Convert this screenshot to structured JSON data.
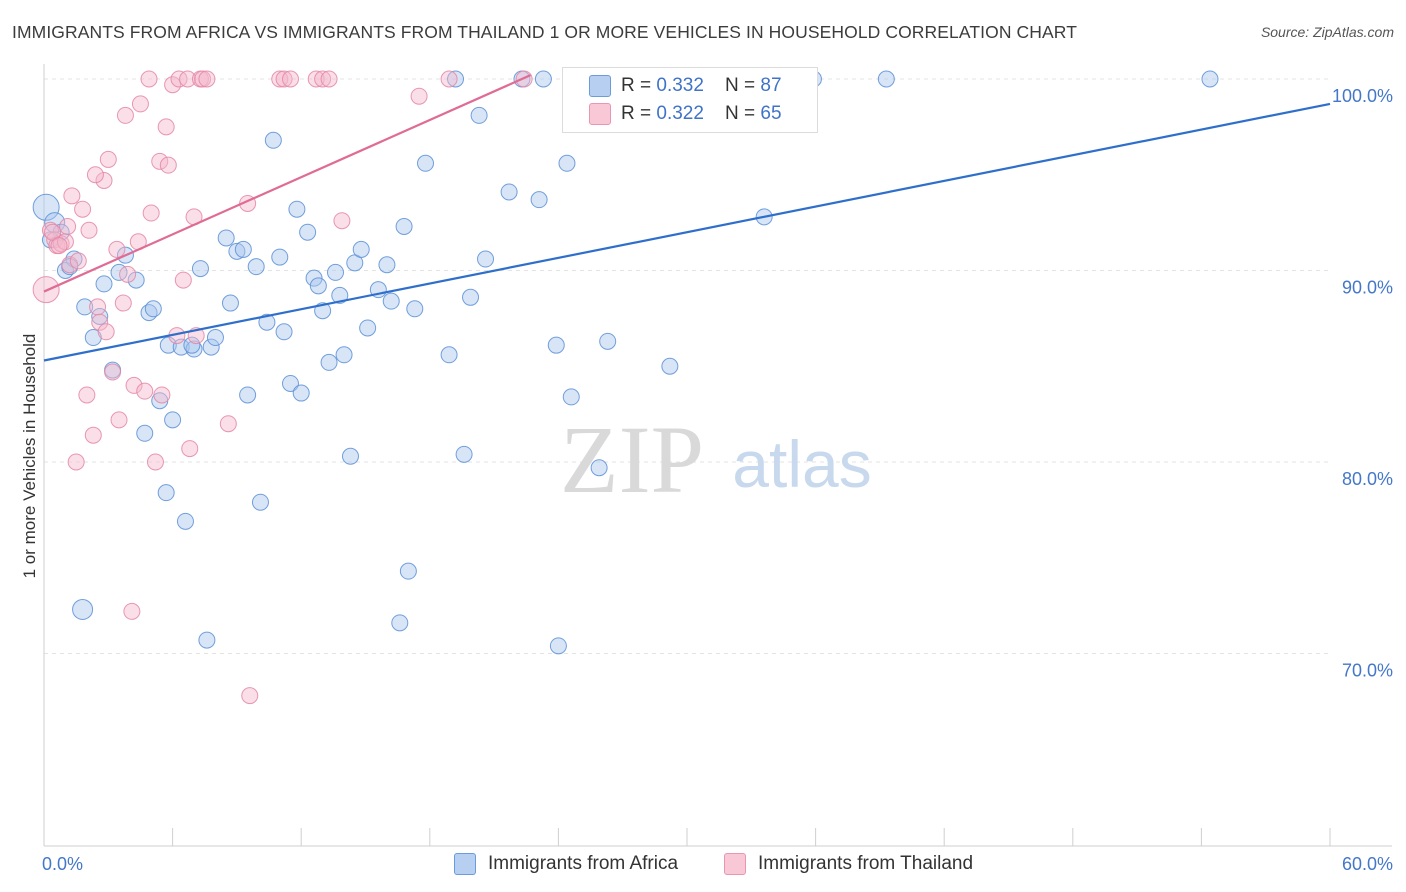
{
  "title": "IMMIGRANTS FROM AFRICA VS IMMIGRANTS FROM THAILAND 1 OR MORE VEHICLES IN HOUSEHOLD CORRELATION CHART",
  "source": "Source: ZipAtlas.com",
  "legend_top": {
    "africa": {
      "r_label": "R = ",
      "r_value": "0.332",
      "n_label": "N = ",
      "n_value": "87"
    },
    "thailand": {
      "r_label": "R = ",
      "r_value": "0.322",
      "n_label": "N = ",
      "n_value": "65"
    }
  },
  "watermark": {
    "zip": "ZIP",
    "atlas": "atlas"
  },
  "colors": {
    "africa_fill": "#a9c6ee",
    "africa_stroke": "#5b8fd6",
    "africa_line": "#2f6fcc",
    "thailand_fill": "#f4b8cb",
    "thailand_stroke": "#e486a5",
    "thailand_line": "#e06b94",
    "axis_label": "#4477c9",
    "grid": "#e3e3e3"
  },
  "chart_data": {
    "type": "scatter",
    "title": "IMMIGRANTS FROM AFRICA VS IMMIGRANTS FROM THAILAND 1 OR MORE VEHICLES IN HOUSEHOLD CORRELATION CHART",
    "xlabel": "",
    "ylabel": "1 or more Vehicles in Household",
    "xlim": [
      0,
      60
    ],
    "ylim": [
      60,
      102
    ],
    "x_tick_labels": [
      {
        "value": 0,
        "label": "0.0%"
      },
      {
        "value": 60,
        "label": "60.0%"
      }
    ],
    "y_tick_labels": [
      {
        "value": 100,
        "label": "100.0%"
      },
      {
        "value": 90,
        "label": "90.0%"
      },
      {
        "value": 80,
        "label": "80.0%"
      },
      {
        "value": 70,
        "label": "70.0%"
      }
    ],
    "series": [
      {
        "name": "Immigrants from Africa",
        "color": "#a9c6ee",
        "trendline": {
          "x": [
            0,
            60
          ],
          "y": [
            85.3,
            98.7
          ]
        },
        "points": [
          {
            "x": 0.1,
            "y": 93.3,
            "r": 13
          },
          {
            "x": 0.5,
            "y": 92.5,
            "r": 10
          },
          {
            "x": 0.8,
            "y": 92.0
          },
          {
            "x": 1.0,
            "y": 90.0
          },
          {
            "x": 1.4,
            "y": 90.6
          },
          {
            "x": 1.9,
            "y": 88.1
          },
          {
            "x": 2.3,
            "y": 86.5
          },
          {
            "x": 2.6,
            "y": 87.6
          },
          {
            "x": 2.8,
            "y": 89.3
          },
          {
            "x": 3.2,
            "y": 84.8
          },
          {
            "x": 3.5,
            "y": 89.9
          },
          {
            "x": 3.8,
            "y": 90.8
          },
          {
            "x": 4.3,
            "y": 89.5
          },
          {
            "x": 4.7,
            "y": 81.5
          },
          {
            "x": 4.9,
            "y": 87.8
          },
          {
            "x": 5.1,
            "y": 88.0
          },
          {
            "x": 5.4,
            "y": 83.2
          },
          {
            "x": 5.7,
            "y": 78.4
          },
          {
            "x": 5.8,
            "y": 86.1
          },
          {
            "x": 6.0,
            "y": 82.2
          },
          {
            "x": 6.4,
            "y": 86.0
          },
          {
            "x": 6.6,
            "y": 76.9
          },
          {
            "x": 7.0,
            "y": 85.9
          },
          {
            "x": 7.3,
            "y": 90.1
          },
          {
            "x": 7.6,
            "y": 70.7
          },
          {
            "x": 7.8,
            "y": 86.0
          },
          {
            "x": 8.0,
            "y": 86.5
          },
          {
            "x": 8.5,
            "y": 91.7
          },
          {
            "x": 8.7,
            "y": 88.3
          },
          {
            "x": 9.0,
            "y": 91.0
          },
          {
            "x": 9.3,
            "y": 91.1
          },
          {
            "x": 9.5,
            "y": 83.5
          },
          {
            "x": 9.9,
            "y": 90.2
          },
          {
            "x": 10.1,
            "y": 77.9
          },
          {
            "x": 10.4,
            "y": 87.3
          },
          {
            "x": 10.7,
            "y": 96.8
          },
          {
            "x": 11.0,
            "y": 90.7
          },
          {
            "x": 11.2,
            "y": 86.8
          },
          {
            "x": 11.5,
            "y": 84.1
          },
          {
            "x": 11.8,
            "y": 93.2
          },
          {
            "x": 12.0,
            "y": 83.6
          },
          {
            "x": 12.3,
            "y": 92.0
          },
          {
            "x": 12.6,
            "y": 89.6
          },
          {
            "x": 12.8,
            "y": 89.2
          },
          {
            "x": 13.0,
            "y": 87.9
          },
          {
            "x": 13.3,
            "y": 85.2
          },
          {
            "x": 13.6,
            "y": 89.9
          },
          {
            "x": 13.8,
            "y": 88.7
          },
          {
            "x": 14.0,
            "y": 85.6
          },
          {
            "x": 14.3,
            "y": 80.3
          },
          {
            "x": 14.5,
            "y": 90.4
          },
          {
            "x": 14.8,
            "y": 91.1
          },
          {
            "x": 15.1,
            "y": 87.0
          },
          {
            "x": 15.6,
            "y": 89.0
          },
          {
            "x": 16.0,
            "y": 90.3
          },
          {
            "x": 16.2,
            "y": 88.4
          },
          {
            "x": 16.6,
            "y": 71.6
          },
          {
            "x": 16.8,
            "y": 92.3
          },
          {
            "x": 17.0,
            "y": 74.3
          },
          {
            "x": 17.3,
            "y": 88.0
          },
          {
            "x": 17.8,
            "y": 95.6
          },
          {
            "x": 18.9,
            "y": 85.6
          },
          {
            "x": 19.2,
            "y": 100.0
          },
          {
            "x": 19.6,
            "y": 80.4
          },
          {
            "x": 19.9,
            "y": 88.6
          },
          {
            "x": 20.3,
            "y": 98.1
          },
          {
            "x": 20.6,
            "y": 90.6
          },
          {
            "x": 21.7,
            "y": 94.1
          },
          {
            "x": 22.3,
            "y": 100.0
          },
          {
            "x": 23.1,
            "y": 93.7
          },
          {
            "x": 23.3,
            "y": 100.0
          },
          {
            "x": 23.9,
            "y": 86.1
          },
          {
            "x": 24.0,
            "y": 70.4
          },
          {
            "x": 24.4,
            "y": 95.6
          },
          {
            "x": 24.6,
            "y": 83.4
          },
          {
            "x": 25.9,
            "y": 79.7
          },
          {
            "x": 26.3,
            "y": 86.3
          },
          {
            "x": 29.2,
            "y": 85.0
          },
          {
            "x": 29.9,
            "y": 100.0
          },
          {
            "x": 33.6,
            "y": 92.8
          },
          {
            "x": 35.9,
            "y": 100.0
          },
          {
            "x": 39.3,
            "y": 100.0
          },
          {
            "x": 54.4,
            "y": 100.0
          },
          {
            "x": 1.8,
            "y": 72.3,
            "r": 10
          },
          {
            "x": 0.3,
            "y": 91.6
          },
          {
            "x": 1.2,
            "y": 90.2
          },
          {
            "x": 6.9,
            "y": 86.1
          }
        ]
      },
      {
        "name": "Immigrants from Thailand",
        "color": "#f4b8cb",
        "trendline": {
          "x": [
            0,
            22.7
          ],
          "y": [
            88.9,
            100.2
          ]
        },
        "points": [
          {
            "x": 0.1,
            "y": 89.0,
            "r": 13
          },
          {
            "x": 0.3,
            "y": 92.1
          },
          {
            "x": 0.5,
            "y": 91.6
          },
          {
            "x": 0.6,
            "y": 91.3
          },
          {
            "x": 0.8,
            "y": 91.4
          },
          {
            "x": 1.0,
            "y": 91.5
          },
          {
            "x": 1.2,
            "y": 90.3
          },
          {
            "x": 1.3,
            "y": 93.9
          },
          {
            "x": 1.5,
            "y": 80.0
          },
          {
            "x": 1.6,
            "y": 90.5
          },
          {
            "x": 1.8,
            "y": 93.2
          },
          {
            "x": 2.0,
            "y": 83.5
          },
          {
            "x": 2.1,
            "y": 92.1
          },
          {
            "x": 2.3,
            "y": 81.4
          },
          {
            "x": 2.5,
            "y": 88.1
          },
          {
            "x": 2.6,
            "y": 87.3
          },
          {
            "x": 2.8,
            "y": 94.7
          },
          {
            "x": 2.9,
            "y": 86.8
          },
          {
            "x": 3.0,
            "y": 95.8
          },
          {
            "x": 3.2,
            "y": 84.7
          },
          {
            "x": 3.4,
            "y": 91.1
          },
          {
            "x": 3.5,
            "y": 82.2
          },
          {
            "x": 3.7,
            "y": 88.3
          },
          {
            "x": 3.8,
            "y": 98.1
          },
          {
            "x": 3.9,
            "y": 89.8
          },
          {
            "x": 4.1,
            "y": 72.2
          },
          {
            "x": 4.2,
            "y": 84.0
          },
          {
            "x": 4.4,
            "y": 91.5
          },
          {
            "x": 4.5,
            "y": 98.7
          },
          {
            "x": 4.7,
            "y": 83.7
          },
          {
            "x": 4.9,
            "y": 100.0
          },
          {
            "x": 5.0,
            "y": 93.0
          },
          {
            "x": 5.2,
            "y": 80.0
          },
          {
            "x": 5.4,
            "y": 95.7
          },
          {
            "x": 5.5,
            "y": 83.5
          },
          {
            "x": 5.7,
            "y": 97.5
          },
          {
            "x": 5.8,
            "y": 95.5
          },
          {
            "x": 6.0,
            "y": 99.7
          },
          {
            "x": 6.2,
            "y": 86.6
          },
          {
            "x": 6.3,
            "y": 100.0
          },
          {
            "x": 6.5,
            "y": 89.5
          },
          {
            "x": 6.7,
            "y": 100.0
          },
          {
            "x": 6.8,
            "y": 80.7
          },
          {
            "x": 7.0,
            "y": 92.8
          },
          {
            "x": 7.1,
            "y": 86.6
          },
          {
            "x": 7.3,
            "y": 100.0
          },
          {
            "x": 7.4,
            "y": 100.0
          },
          {
            "x": 7.6,
            "y": 100.0
          },
          {
            "x": 8.6,
            "y": 82.0
          },
          {
            "x": 9.5,
            "y": 93.5
          },
          {
            "x": 9.6,
            "y": 67.8
          },
          {
            "x": 11.0,
            "y": 100.0
          },
          {
            "x": 11.2,
            "y": 100.0
          },
          {
            "x": 11.5,
            "y": 100.0
          },
          {
            "x": 12.7,
            "y": 100.0
          },
          {
            "x": 13.0,
            "y": 100.0
          },
          {
            "x": 13.3,
            "y": 100.0
          },
          {
            "x": 13.9,
            "y": 92.6
          },
          {
            "x": 17.5,
            "y": 99.1
          },
          {
            "x": 18.9,
            "y": 100.0
          },
          {
            "x": 22.4,
            "y": 100.0
          },
          {
            "x": 0.4,
            "y": 92.0
          },
          {
            "x": 1.1,
            "y": 92.3
          },
          {
            "x": 2.4,
            "y": 95.0
          },
          {
            "x": 0.7,
            "y": 91.3
          }
        ]
      }
    ]
  },
  "bottom_legend": {
    "africa_label": "Immigrants from Africa",
    "thailand_label": "Immigrants from Thailand"
  }
}
